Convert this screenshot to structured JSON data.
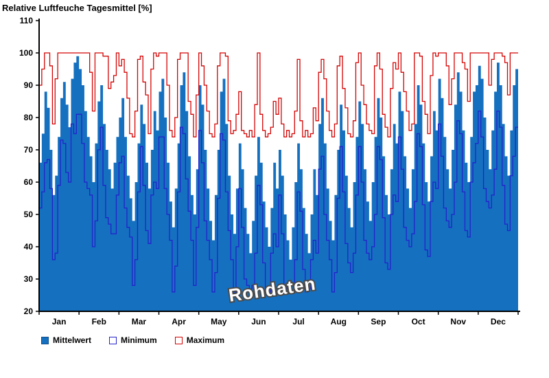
{
  "title": "Relative Luftfeuche Tagesmittel [%]",
  "watermark": "Rohdaten",
  "legend": [
    {
      "label": "Mittelwert",
      "type": "fill",
      "color": "#1570bf"
    },
    {
      "label": "Minimum",
      "type": "line",
      "color": "#2222cc"
    },
    {
      "label": "Maximum",
      "type": "line",
      "color": "#d40000"
    }
  ],
  "chart_data": {
    "type": "area",
    "step": true,
    "title": "Relative Luftfeuche Tagesmittel [%]",
    "xlabel": "",
    "ylabel": "",
    "ylim": [
      20,
      110
    ],
    "yticks": [
      20,
      30,
      40,
      50,
      60,
      70,
      80,
      90,
      100,
      110
    ],
    "grid": false,
    "legend_position": "bottom-left",
    "months": [
      "Jan",
      "Feb",
      "Mar",
      "Apr",
      "May",
      "Jun",
      "Jul",
      "Aug",
      "Sep",
      "Oct",
      "Nov",
      "Dec"
    ],
    "points_per_month": 15,
    "series": [
      {
        "name": "Mittelwert",
        "render": "step-area",
        "color": "#1570bf",
        "values": [
          66,
          75,
          88,
          83,
          70,
          56,
          62,
          74,
          86,
          91,
          84,
          77,
          92,
          97,
          99,
          95,
          90,
          82,
          74,
          68,
          60,
          72,
          85,
          90,
          78,
          70,
          64,
          58,
          66,
          74,
          80,
          86,
          74,
          62,
          55,
          48,
          60,
          72,
          84,
          78,
          66,
          58,
          70,
          82,
          76,
          88,
          92,
          80,
          66,
          54,
          46,
          58,
          72,
          90,
          94,
          82,
          68,
          56,
          50,
          64,
          90,
          84,
          70,
          58,
          48,
          42,
          56,
          70,
          88,
          92,
          78,
          62,
          50,
          44,
          58,
          72,
          64,
          52,
          44,
          38,
          48,
          62,
          74,
          66,
          54,
          46,
          40,
          52,
          66,
          58,
          70,
          62,
          50,
          42,
          36,
          46,
          60,
          72,
          64,
          52,
          44,
          38,
          50,
          64,
          56,
          78,
          86,
          72,
          58,
          48,
          42,
          56,
          70,
          84,
          76,
          62,
          52,
          46,
          60,
          74,
          85,
          78,
          64,
          54,
          48,
          60,
          74,
          86,
          80,
          68,
          56,
          50,
          64,
          78,
          72,
          88,
          82,
          68,
          58,
          52,
          64,
          78,
          90,
          84,
          72,
          60,
          54,
          68,
          82,
          76,
          92,
          86,
          74,
          64,
          58,
          70,
          84,
          94,
          88,
          76,
          66,
          60,
          74,
          88,
          90,
          96,
          92,
          80,
          70,
          64,
          76,
          88,
          97,
          90,
          78,
          68,
          62,
          76,
          90,
          95
        ]
      },
      {
        "name": "Minimum",
        "render": "step-line",
        "color": "#2222cc",
        "values": [
          52,
          57,
          66,
          67,
          58,
          36,
          38,
          59,
          73,
          72,
          63,
          60,
          78,
          75,
          81,
          81,
          72,
          60,
          58,
          56,
          40,
          48,
          70,
          77,
          59,
          49,
          47,
          44,
          44,
          56,
          66,
          68,
          52,
          46,
          43,
          28,
          36,
          57,
          71,
          59,
          45,
          41,
          56,
          60,
          58,
          74,
          74,
          58,
          50,
          42,
          26,
          34,
          57,
          77,
          75,
          61,
          51,
          42,
          28,
          46,
          76,
          66,
          48,
          42,
          36,
          26,
          32,
          55,
          75,
          73,
          57,
          45,
          36,
          26,
          40,
          58,
          46,
          30,
          28,
          27,
          28,
          38,
          59,
          53,
          35,
          27,
          26,
          38,
          44,
          40,
          56,
          44,
          28,
          27,
          26,
          28,
          36,
          57,
          51,
          33,
          26,
          27,
          36,
          42,
          38,
          64,
          68,
          50,
          42,
          36,
          26,
          32,
          55,
          71,
          57,
          41,
          35,
          32,
          38,
          56,
          71,
          60,
          42,
          38,
          36,
          40,
          50,
          71,
          67,
          49,
          35,
          33,
          50,
          56,
          54,
          74,
          64,
          46,
          42,
          40,
          44,
          54,
          75,
          71,
          53,
          39,
          37,
          54,
          60,
          58,
          78,
          68,
          52,
          48,
          46,
          50,
          60,
          79,
          75,
          57,
          45,
          43,
          60,
          66,
          72,
          82,
          74,
          58,
          54,
          52,
          56,
          64,
          82,
          77,
          59,
          47,
          45,
          62,
          68,
          77
        ]
      },
      {
        "name": "Maximum",
        "render": "step-line",
        "color": "#d40000",
        "values": [
          90,
          95,
          100,
          100,
          96,
          78,
          92,
          100,
          100,
          100,
          100,
          100,
          100,
          100,
          100,
          100,
          100,
          100,
          100,
          94,
          82,
          100,
          100,
          100,
          99,
          99,
          89,
          91,
          93,
          100,
          96,
          98,
          94,
          86,
          75,
          74,
          82,
          98,
          99,
          91,
          87,
          75,
          95,
          100,
          99,
          100,
          100,
          100,
          90,
          76,
          74,
          80,
          98,
          100,
          100,
          100,
          85,
          81,
          74,
          87,
          100,
          96,
          90,
          82,
          75,
          74,
          78,
          96,
          100,
          100,
          99,
          79,
          75,
          76,
          81,
          88,
          76,
          75,
          74,
          76,
          74,
          84,
          100,
          81,
          76,
          74,
          75,
          77,
          85,
          81,
          86,
          78,
          74,
          76,
          74,
          75,
          82,
          98,
          79,
          74,
          76,
          74,
          75,
          83,
          79,
          94,
          98,
          92,
          82,
          76,
          74,
          78,
          96,
          99,
          89,
          83,
          75,
          74,
          79,
          97,
          100,
          90,
          84,
          78,
          76,
          75,
          96,
          100,
          95,
          81,
          77,
          74,
          89,
          97,
          95,
          100,
          94,
          88,
          82,
          76,
          78,
          100,
          100,
          99,
          85,
          81,
          75,
          93,
          100,
          99,
          100,
          100,
          100,
          96,
          84,
          92,
          100,
          100,
          100,
          97,
          95,
          85,
          100,
          100,
          100,
          100,
          100,
          100,
          100,
          90,
          98,
          100,
          100,
          100,
          99,
          97,
          87,
          100,
          100,
          100
        ]
      }
    ]
  }
}
